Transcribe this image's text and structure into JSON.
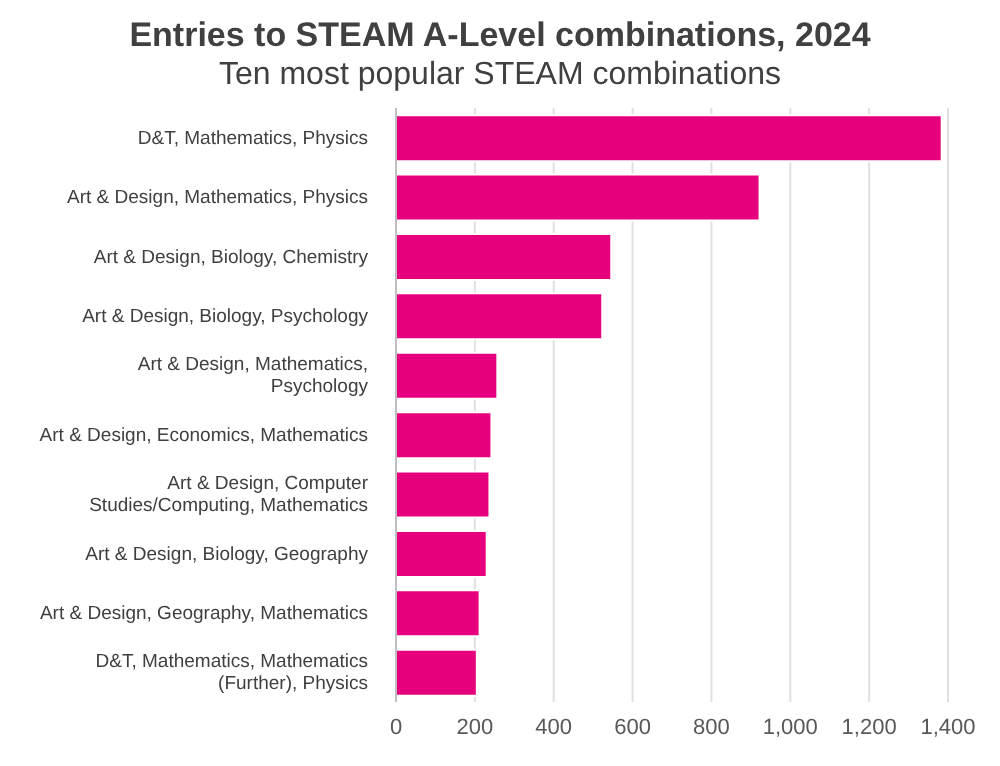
{
  "chart_data": {
    "type": "bar",
    "orientation": "horizontal",
    "title": "Entries to STEAM A-Level combinations, 2024",
    "subtitle": "Ten most popular STEAM combinations",
    "categories": [
      "D&T, Mathematics, Physics",
      "Art & Design, Mathematics, Physics",
      "Art & Design, Biology, Chemistry",
      "Art & Design, Biology, Psychology",
      "Art & Design, Mathematics, Psychology",
      "Art & Design, Economics, Mathematics",
      "Art & Design, Computer Studies/Computing, Mathematics",
      "Art & Design, Biology, Geography",
      "Art & Design, Geography, Mathematics",
      "D&T, Mathematics, Mathematics (Further), Physics"
    ],
    "values": [
      1384,
      922,
      546,
      523,
      257,
      242,
      237,
      230,
      212,
      205
    ],
    "color": "#e6007e",
    "xlim": [
      0,
      1400
    ],
    "xticks": [
      0,
      200,
      400,
      600,
      800,
      {
        "value": 1000,
        "label": "1,000"
      },
      {
        "value": 1200,
        "label": "1,200"
      },
      {
        "value": 1400,
        "label": "1,400"
      }
    ],
    "grid": "x"
  }
}
